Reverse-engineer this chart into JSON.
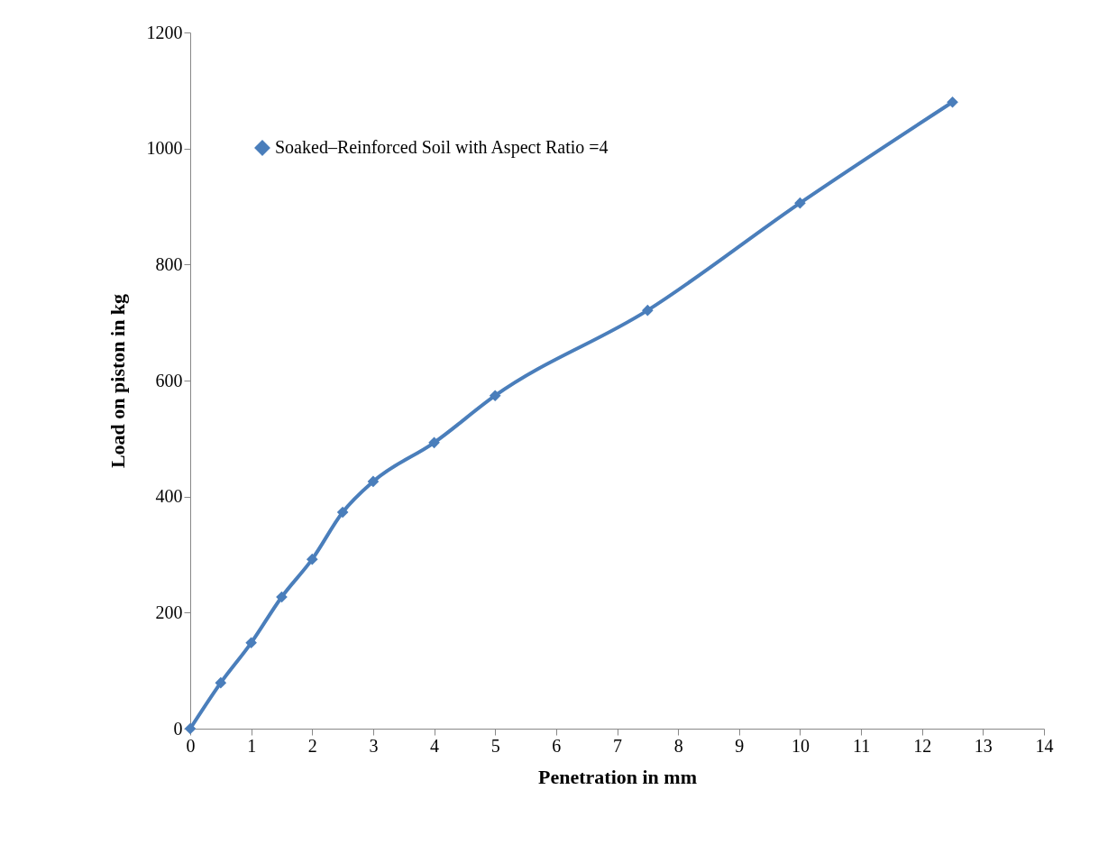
{
  "chart_data": {
    "type": "line",
    "xlabel": "Penetration in mm",
    "ylabel": "Load on piston in kg",
    "x": [
      0,
      0.5,
      1,
      1.5,
      2,
      2.5,
      3,
      4,
      5,
      7.5,
      10,
      12.5
    ],
    "series": [
      {
        "name": "Soaked–Reinforced Soil with Aspect Ratio =4",
        "color": "#4a7ebb",
        "values": [
          0,
          79,
          148,
          227,
          292,
          373,
          426,
          493,
          574,
          721,
          906,
          1080
        ]
      }
    ],
    "xlim": [
      0,
      14
    ],
    "xticks": [
      0,
      1,
      2,
      3,
      4,
      5,
      6,
      7,
      8,
      9,
      10,
      11,
      12,
      13,
      14
    ],
    "ylim": [
      0,
      1200
    ],
    "yticks": [
      0,
      200,
      400,
      600,
      800,
      1000,
      1200
    ],
    "grid": false,
    "legend": "top left",
    "marker": "diamond",
    "line_style": "solid"
  }
}
